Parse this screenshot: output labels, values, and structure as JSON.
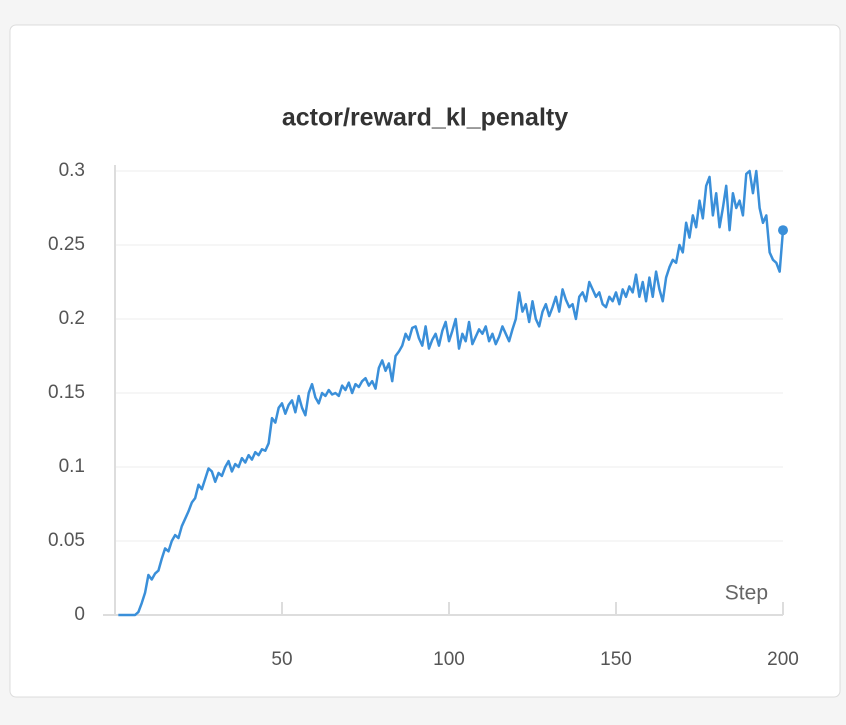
{
  "chart_data": {
    "type": "line",
    "title": "actor/reward_kl_penalty",
    "x_label": "Step",
    "color": "#3a8fd9",
    "grid": true,
    "xlim": [
      0,
      200
    ],
    "ylim": [
      0,
      0.3
    ],
    "xticks": [
      50,
      100,
      150,
      200
    ],
    "yticks": [
      0,
      0.05,
      0.1,
      0.15,
      0.2,
      0.25,
      0.3
    ],
    "x": [
      1,
      2,
      3,
      4,
      5,
      6,
      7,
      8,
      9,
      10,
      11,
      12,
      13,
      14,
      15,
      16,
      17,
      18,
      19,
      20,
      21,
      22,
      23,
      24,
      25,
      26,
      27,
      28,
      29,
      30,
      31,
      32,
      33,
      34,
      35,
      36,
      37,
      38,
      39,
      40,
      41,
      42,
      43,
      44,
      45,
      46,
      47,
      48,
      49,
      50,
      51,
      52,
      53,
      54,
      55,
      56,
      57,
      58,
      59,
      60,
      61,
      62,
      63,
      64,
      65,
      66,
      67,
      68,
      69,
      70,
      71,
      72,
      73,
      74,
      75,
      76,
      77,
      78,
      79,
      80,
      81,
      82,
      83,
      84,
      85,
      86,
      87,
      88,
      89,
      90,
      91,
      92,
      93,
      94,
      95,
      96,
      97,
      98,
      99,
      100,
      101,
      102,
      103,
      104,
      105,
      106,
      107,
      108,
      109,
      110,
      111,
      112,
      113,
      114,
      115,
      116,
      117,
      118,
      119,
      120,
      121,
      122,
      123,
      124,
      125,
      126,
      127,
      128,
      129,
      130,
      131,
      132,
      133,
      134,
      135,
      136,
      137,
      138,
      139,
      140,
      141,
      142,
      143,
      144,
      145,
      146,
      147,
      148,
      149,
      150,
      151,
      152,
      153,
      154,
      155,
      156,
      157,
      158,
      159,
      160,
      161,
      162,
      163,
      164,
      165,
      166,
      167,
      168,
      169,
      170,
      171,
      172,
      173,
      174,
      175,
      176,
      177,
      178,
      179,
      180,
      181,
      182,
      183,
      184,
      185,
      186,
      187,
      188,
      189,
      190,
      191,
      192,
      193,
      194,
      195,
      196,
      197,
      198,
      199,
      200
    ],
    "values": [
      0,
      0,
      0,
      0,
      0,
      0,
      0.002,
      0.008,
      0.015,
      0.027,
      0.024,
      0.028,
      0.03,
      0.038,
      0.045,
      0.043,
      0.05,
      0.054,
      0.052,
      0.06,
      0.065,
      0.07,
      0.076,
      0.079,
      0.088,
      0.085,
      0.092,
      0.099,
      0.097,
      0.09,
      0.096,
      0.094,
      0.1,
      0.104,
      0.097,
      0.102,
      0.1,
      0.106,
      0.103,
      0.108,
      0.105,
      0.11,
      0.108,
      0.112,
      0.111,
      0.116,
      0.133,
      0.13,
      0.14,
      0.143,
      0.136,
      0.142,
      0.145,
      0.137,
      0.148,
      0.14,
      0.135,
      0.15,
      0.156,
      0.147,
      0.143,
      0.15,
      0.148,
      0.152,
      0.149,
      0.15,
      0.148,
      0.155,
      0.152,
      0.157,
      0.15,
      0.156,
      0.154,
      0.158,
      0.16,
      0.155,
      0.158,
      0.153,
      0.167,
      0.172,
      0.165,
      0.17,
      0.158,
      0.175,
      0.178,
      0.182,
      0.19,
      0.186,
      0.194,
      0.195,
      0.187,
      0.182,
      0.195,
      0.18,
      0.186,
      0.19,
      0.182,
      0.192,
      0.198,
      0.185,
      0.192,
      0.2,
      0.18,
      0.19,
      0.185,
      0.198,
      0.183,
      0.188,
      0.193,
      0.19,
      0.195,
      0.185,
      0.19,
      0.183,
      0.188,
      0.195,
      0.19,
      0.185,
      0.193,
      0.2,
      0.218,
      0.205,
      0.21,
      0.198,
      0.212,
      0.2,
      0.195,
      0.205,
      0.21,
      0.202,
      0.208,
      0.215,
      0.205,
      0.22,
      0.213,
      0.208,
      0.21,
      0.2,
      0.215,
      0.218,
      0.212,
      0.225,
      0.22,
      0.215,
      0.218,
      0.21,
      0.208,
      0.215,
      0.212,
      0.218,
      0.21,
      0.22,
      0.215,
      0.222,
      0.218,
      0.23,
      0.215,
      0.225,
      0.212,
      0.228,
      0.215,
      0.232,
      0.22,
      0.212,
      0.228,
      0.235,
      0.24,
      0.238,
      0.25,
      0.245,
      0.265,
      0.255,
      0.27,
      0.262,
      0.28,
      0.268,
      0.29,
      0.296,
      0.27,
      0.285,
      0.262,
      0.275,
      0.29,
      0.26,
      0.285,
      0.275,
      0.28,
      0.27,
      0.298,
      0.3,
      0.285,
      0.3,
      0.275,
      0.265,
      0.27,
      0.245,
      0.24,
      0.238,
      0.232,
      0.26
    ]
  }
}
